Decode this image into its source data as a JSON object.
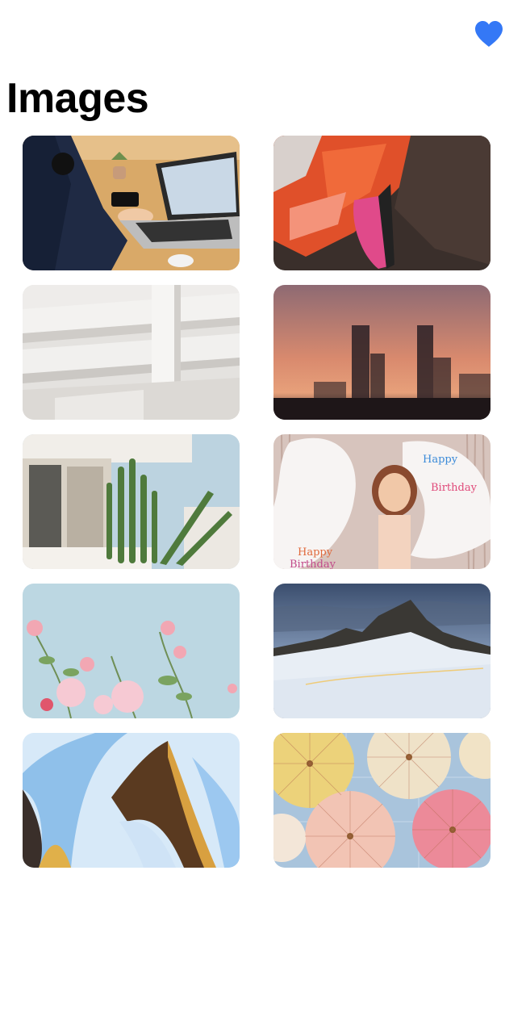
{
  "header": {
    "favorite_icon": "heart-icon",
    "favorite_color": "#3478F6"
  },
  "page": {
    "title": "Images"
  },
  "gallery": {
    "items": [
      {
        "subject": "person-with-laptop-and-camera"
      },
      {
        "subject": "flamingo-feathers-closeup"
      },
      {
        "subject": "white-architecture-shelves"
      },
      {
        "subject": "blurred-city-skyline-sunset"
      },
      {
        "subject": "cactus-on-balcony"
      },
      {
        "subject": "woman-with-birthday-balloons",
        "text": [
          "Happy",
          "Birthday",
          "Happy",
          "Birthday"
        ]
      },
      {
        "subject": "pink-flowers-blue-sky"
      },
      {
        "subject": "snowy-mountain-landscape"
      },
      {
        "subject": "abstract-wave-ribbons"
      },
      {
        "subject": "paper-umbrellas"
      }
    ]
  }
}
